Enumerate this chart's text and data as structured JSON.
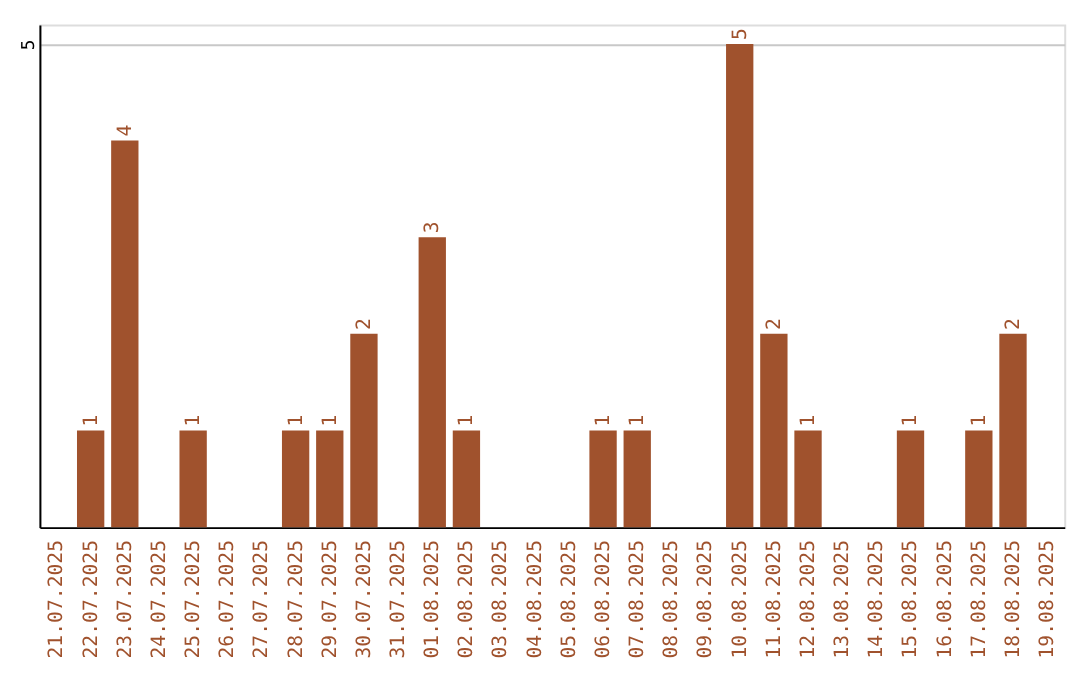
{
  "chart_data": {
    "type": "bar",
    "categories": [
      "21.07.2025",
      "22.07.2025",
      "23.07.2025",
      "24.07.2025",
      "25.07.2025",
      "26.07.2025",
      "27.07.2025",
      "28.07.2025",
      "29.07.2025",
      "30.07.2025",
      "31.07.2025",
      "01.08.2025",
      "02.08.2025",
      "03.08.2025",
      "04.08.2025",
      "05.08.2025",
      "06.08.2025",
      "07.08.2025",
      "08.08.2025",
      "09.08.2025",
      "10.08.2025",
      "11.08.2025",
      "12.08.2025",
      "13.08.2025",
      "14.08.2025",
      "15.08.2025",
      "16.08.2025",
      "17.08.2025",
      "18.08.2025",
      "19.08.2025"
    ],
    "values": [
      0,
      1,
      4,
      0,
      1,
      0,
      0,
      1,
      1,
      2,
      0,
      3,
      1,
      0,
      0,
      0,
      1,
      1,
      0,
      0,
      5,
      2,
      1,
      0,
      0,
      1,
      0,
      1,
      2,
      0
    ],
    "value_labels": [
      null,
      "1",
      "4",
      null,
      "1",
      null,
      null,
      "1",
      "1",
      "2",
      null,
      "3",
      "1",
      null,
      null,
      null,
      "1",
      "1",
      null,
      null,
      "5",
      "2",
      "1",
      null,
      null,
      "1",
      null,
      "1",
      "2",
      null
    ],
    "color": "#a0522d",
    "ylim": [
      0,
      5.2
    ],
    "yticks": [
      5
    ],
    "grid": "y"
  }
}
